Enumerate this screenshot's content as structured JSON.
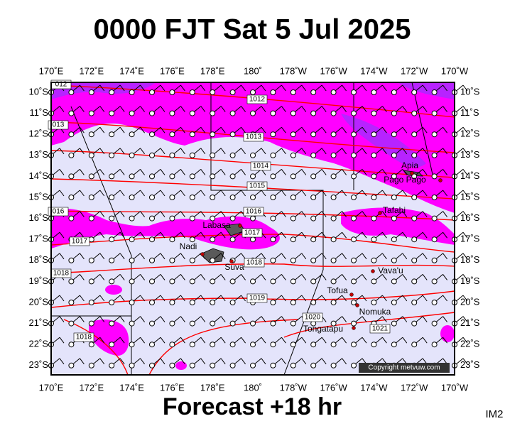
{
  "header": {
    "title": "0000 FJT Sat 5 Jul 2025"
  },
  "map": {
    "lon_labels": [
      "170˚E",
      "172˚E",
      "174˚E",
      "176˚E",
      "178˚E",
      "180˚",
      "178˚W",
      "176˚W",
      "174˚W",
      "172˚W",
      "170˚W"
    ],
    "lat_labels": [
      "10˚S",
      "11˚S",
      "12˚S",
      "13˚S",
      "14˚S",
      "15˚S",
      "16˚S",
      "17˚S",
      "18˚S",
      "19˚S",
      "20˚S",
      "21˚S",
      "22˚S",
      "23˚S"
    ],
    "isobar_labels": [
      "012",
      "1012",
      "013",
      "1013",
      "1014",
      "1015",
      "016",
      "1016",
      "1017",
      "1017",
      "1018",
      "1018",
      "1019",
      "1020",
      "1021",
      "1018"
    ],
    "places": [
      "Apia",
      "Pago Pago",
      "Tafahi",
      "Labasa",
      "Nadi",
      "Suva",
      "Vava'u",
      "Tofua",
      "Nomuka",
      "Tongatapu"
    ],
    "copyright": "Copyright metvuw.com"
  },
  "footer": {
    "forecast": "Forecast +18 hr",
    "corner": "IM2"
  }
}
